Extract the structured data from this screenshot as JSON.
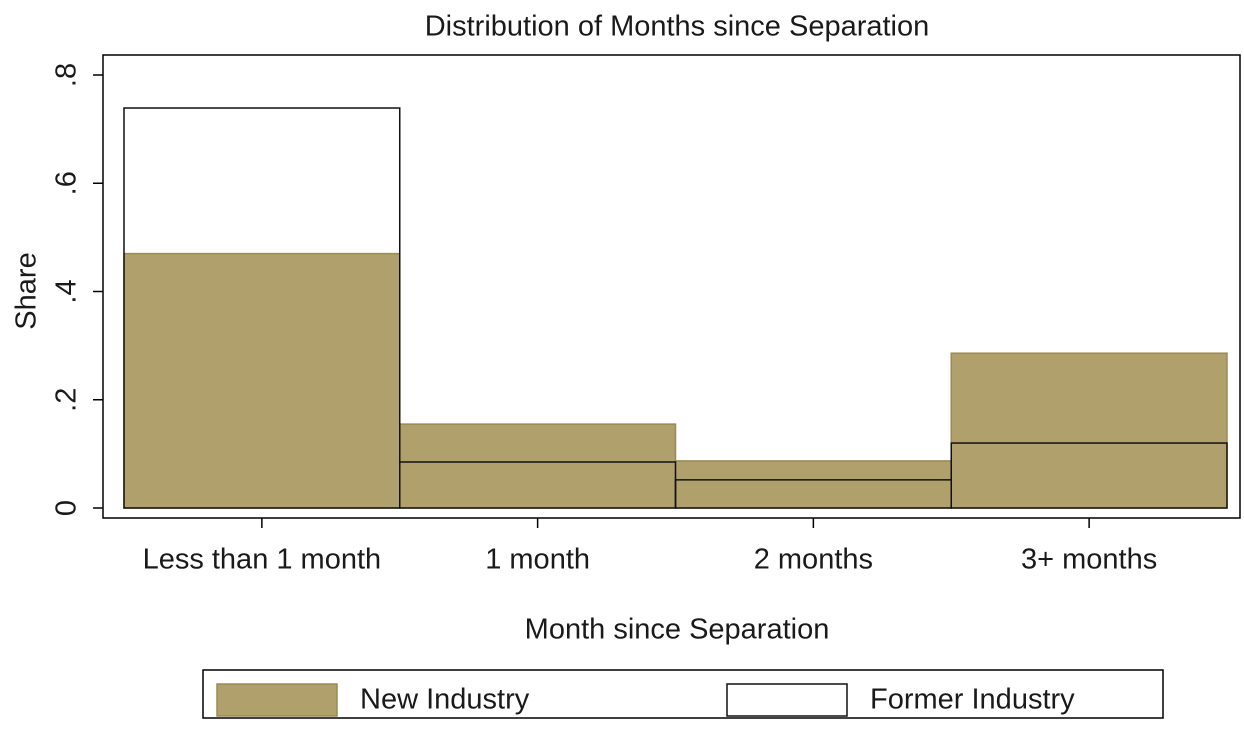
{
  "chart_data": {
    "type": "bar",
    "title": "Distribution of Months since Separation",
    "x_label": "Month since Separation",
    "y_label": "Share",
    "categories": [
      "Less than 1 month",
      "1 month",
      "2 months",
      "3+ months"
    ],
    "series": [
      {
        "name": "New Industry",
        "color": "#b0a06b",
        "values": [
          0.47,
          0.155,
          0.087,
          0.286
        ]
      },
      {
        "name": "Former Industry",
        "color": "#ffffff",
        "values": [
          0.739,
          0.085,
          0.052,
          0.12
        ]
      }
    ],
    "ylim": [
      0,
      0.8
    ],
    "yticks": [
      0,
      {
        "value": 0.2,
        "label": ".2"
      },
      {
        "value": 0.4,
        "label": ".4"
      },
      {
        "value": 0.6,
        "label": ".6"
      },
      {
        "value": 0.8,
        "label": ".8"
      }
    ],
    "grid": false,
    "legend": "bottom"
  }
}
